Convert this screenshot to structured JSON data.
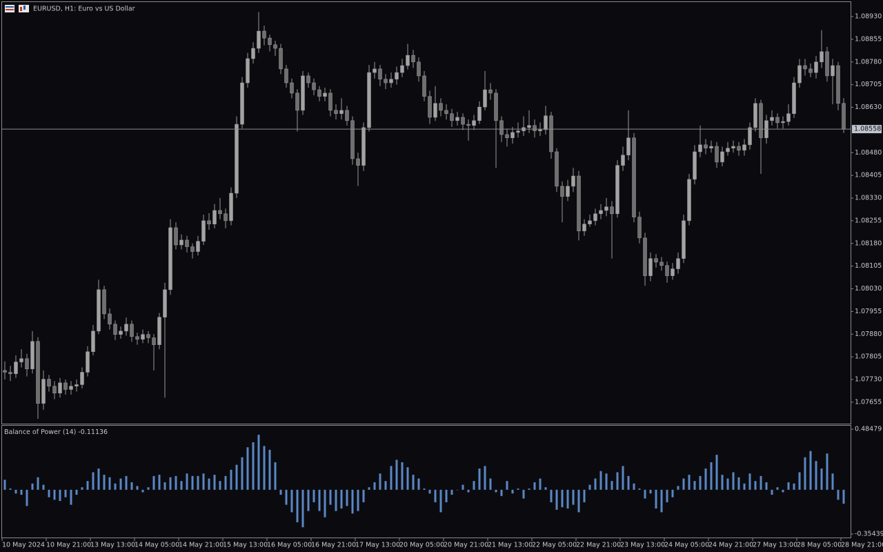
{
  "chart_data": {
    "type": "candlestick",
    "title": "EURUSD, H1:  Euro vs US Dollar",
    "up_color": "#a3a3a3",
    "down_color": "#6f6f6f",
    "ylim": [
      1.07584,
      1.08978
    ],
    "yticks": [
      {
        "value": 1.0893,
        "label": "1.08930"
      },
      1.08855,
      {
        "value": 1.0878,
        "label": "1.08780"
      },
      1.08705,
      {
        "value": 1.0863,
        "label": "1.08630"
      },
      {
        "value": 1.0848,
        "label": "1.08480"
      },
      1.08405,
      {
        "value": 1.0833,
        "label": "1.08330"
      },
      1.08255,
      {
        "value": 1.0818,
        "label": "1.08180"
      },
      1.08105,
      {
        "value": 1.0803,
        "label": "1.08030"
      },
      1.07955,
      {
        "value": 1.0788,
        "label": "1.07880"
      },
      1.07805,
      {
        "value": 1.0773,
        "label": "1.07730"
      },
      1.07655
    ],
    "x_labels": [
      "10 May 2024",
      "10 May 21:00",
      "13 May 13:00",
      "14 May 05:00",
      "14 May 21:00",
      "15 May 13:00",
      "16 May 05:00",
      "16 May 21:00",
      "17 May 13:00",
      "20 May 05:00",
      "20 May 21:00",
      "21 May 13:00",
      "22 May 05:00",
      "22 May 21:00",
      "23 May 13:00",
      "24 May 05:00",
      "24 May 21:00",
      "27 May 13:00",
      "28 May 05:00",
      "28 May 21:00"
    ],
    "open": [
      1.0776,
      1.07754,
      1.07749,
      1.07788,
      1.07799,
      1.07765,
      1.07856,
      1.07651,
      1.07731,
      1.07708,
      1.07685,
      1.07719,
      1.07697,
      1.07708,
      1.07713,
      1.07754,
      1.07822,
      1.0789,
      1.08027,
      1.07947,
      1.07913,
      1.07879,
      1.0789,
      1.07913,
      1.07872,
      1.07863,
      1.07879,
      1.07868,
      1.07845,
      1.07936,
      1.08027,
      1.08232,
      1.08175,
      1.08191,
      1.08169,
      1.08153,
      1.08187,
      1.08255,
      1.08244,
      1.08289,
      1.08278,
      1.08255,
      1.08346,
      1.08574,
      1.08711,
      1.08791,
      1.08825,
      1.08882,
      1.08859,
      1.08837,
      1.08825,
      1.08757,
      1.08711,
      1.08677,
      1.0862,
      1.08734,
      1.08711,
      1.08688,
      1.08666,
      1.08677,
      1.0862,
      1.08609,
      1.0862,
      1.08586,
      1.0846,
      1.08438,
      1.08563,
      1.08745,
      1.08757,
      1.08723,
      1.08711,
      1.08723,
      1.08745,
      1.08768,
      1.08802,
      1.0878,
      1.08734,
      1.08666,
      1.08597,
      1.08643,
      1.0862,
      1.08609,
      1.08586,
      1.08597,
      1.08574,
      1.0857,
      1.08586,
      1.08631,
      1.08688,
      1.08677,
      1.08586,
      1.0854,
      1.08529,
      1.08547,
      1.08552,
      1.08563,
      1.0857,
      1.08552,
      1.08556,
      1.08602,
      1.08483,
      1.08369,
      1.08335,
      1.08369,
      1.08403,
      1.08221,
      1.08244,
      1.08255,
      1.08278,
      1.08289,
      1.08301,
      1.08278,
      1.08438,
      1.08472,
      1.08529,
      1.08267,
      1.08198,
      1.08073,
      1.0813,
      1.08118,
      1.08107,
      1.08073,
      1.08096,
      1.0813,
      1.08255,
      1.08392,
      1.08483,
      1.08506,
      1.08495,
      1.08501,
      1.08449,
      1.08483,
      1.08495,
      1.08501,
      1.08488,
      1.08506,
      1.08563,
      1.08643,
      1.08529,
      1.08586,
      1.08597,
      1.08579,
      1.08583,
      1.08609,
      1.08711,
      1.08768,
      1.08757,
      1.08745,
      1.0878,
      1.08814,
      1.08734,
      1.08768,
      1.08643
    ],
    "high": [
      1.0779,
      1.07775,
      1.0781,
      1.0783,
      1.07815,
      1.0789,
      1.0787,
      1.0776,
      1.07745,
      1.07725,
      1.07735,
      1.0773,
      1.07725,
      1.0773,
      1.0777,
      1.0784,
      1.0791,
      1.0806,
      1.0804,
      1.07965,
      1.07925,
      1.07905,
      1.07935,
      1.07925,
      1.07885,
      1.07895,
      1.0789,
      1.0788,
      1.0795,
      1.0805,
      1.0826,
      1.0825,
      1.0821,
      1.08205,
      1.0818,
      1.08205,
      1.08275,
      1.0828,
      1.0831,
      1.0833,
      1.08295,
      1.08365,
      1.086,
      1.0873,
      1.0881,
      1.08845,
      1.08945,
      1.089,
      1.0887,
      1.0885,
      1.0884,
      1.0877,
      1.08725,
      1.0869,
      1.0875,
      1.08745,
      1.08725,
      1.087,
      1.08695,
      1.0869,
      1.0864,
      1.0866,
      1.08635,
      1.086,
      1.0848,
      1.0858,
      1.0877,
      1.0878,
      1.0877,
      1.0874,
      1.08745,
      1.08765,
      1.0879,
      1.0884,
      1.0882,
      1.08795,
      1.0875,
      1.08685,
      1.087,
      1.0866,
      1.0864,
      1.08625,
      1.08615,
      1.0861,
      1.0859,
      1.08605,
      1.0865,
      1.0875,
      1.0871,
      1.0869,
      1.086,
      1.0856,
      1.08565,
      1.0858,
      1.086,
      1.0862,
      1.0859,
      1.0858,
      1.08635,
      1.08615,
      1.08495,
      1.08385,
      1.0839,
      1.0843,
      1.0842,
      1.0826,
      1.08275,
      1.08295,
      1.0831,
      1.0833,
      1.0832,
      1.08455,
      1.085,
      1.0862,
      1.08545,
      1.08285,
      1.08215,
      1.0815,
      1.08145,
      1.08135,
      1.0812,
      1.08115,
      1.0815,
      1.08275,
      1.0841,
      1.08505,
      1.0857,
      1.08525,
      1.0852,
      1.08515,
      1.085,
      1.08515,
      1.0852,
      1.08515,
      1.08525,
      1.0858,
      1.0866,
      1.08655,
      1.08605,
      1.0862,
      1.0861,
      1.086,
      1.0864,
      1.0873,
      1.0879,
      1.0879,
      1.08775,
      1.088,
      1.08885,
      1.0883,
      1.0879,
      1.0878,
      1.0866
    ],
    "low": [
      1.0773,
      1.07725,
      1.07735,
      1.0777,
      1.0774,
      1.0775,
      1.076,
      1.0763,
      1.0769,
      1.07665,
      1.0767,
      1.0768,
      1.0768,
      1.0769,
      1.077,
      1.0774,
      1.0781,
      1.0788,
      1.0793,
      1.07895,
      1.0786,
      1.07865,
      1.07875,
      1.07855,
      1.07845,
      1.0785,
      1.0785,
      1.0776,
      1.0783,
      1.0767,
      1.0801,
      1.0816,
      1.0816,
      1.0815,
      1.0813,
      1.0814,
      1.08175,
      1.08225,
      1.0823,
      1.0826,
      1.0823,
      1.0824,
      1.0833,
      1.0856,
      1.08695,
      1.08775,
      1.0881,
      1.08835,
      1.08815,
      1.088,
      1.0874,
      1.08695,
      1.0866,
      1.0855,
      1.08605,
      1.08695,
      1.0867,
      1.0865,
      1.0865,
      1.086,
      1.0859,
      1.0859,
      1.0857,
      1.0844,
      1.0837,
      1.0842,
      1.0855,
      1.08725,
      1.087,
      1.0869,
      1.08695,
      1.08705,
      1.0873,
      1.08755,
      1.0876,
      1.08715,
      1.0865,
      1.08575,
      1.08585,
      1.086,
      1.0859,
      1.08565,
      1.0857,
      1.08555,
      1.0852,
      1.08555,
      1.08575,
      1.0862,
      1.08655,
      1.0843,
      1.08515,
      1.085,
      1.0851,
      1.0853,
      1.08535,
      1.08545,
      1.0853,
      1.08535,
      1.0854,
      1.0846,
      1.0835,
      1.0825,
      1.0832,
      1.0835,
      1.0819,
      1.08205,
      1.08235,
      1.0824,
      1.0826,
      1.0827,
      1.0813,
      1.08265,
      1.0842,
      1.08455,
      1.0825,
      1.0818,
      1.0804,
      1.08055,
      1.081,
      1.0809,
      1.0805,
      1.0806,
      1.0808,
      1.08115,
      1.0824,
      1.08375,
      1.08465,
      1.08475,
      1.0848,
      1.0843,
      1.08435,
      1.0847,
      1.0848,
      1.0847,
      1.0847,
      1.0849,
      1.0855,
      1.0841,
      1.0851,
      1.0857,
      1.0856,
      1.0856,
      1.0857,
      1.08595,
      1.08695,
      1.08735,
      1.0873,
      1.08725,
      1.0876,
      1.08715,
      1.0864,
      1.0862,
      1.08545
    ],
    "close": [
      1.07754,
      1.07749,
      1.07788,
      1.07799,
      1.07765,
      1.07856,
      1.07651,
      1.07731,
      1.07708,
      1.07685,
      1.07719,
      1.07697,
      1.07708,
      1.07713,
      1.07754,
      1.07822,
      1.0789,
      1.08027,
      1.07947,
      1.07913,
      1.07879,
      1.0789,
      1.07913,
      1.07872,
      1.07863,
      1.07879,
      1.07868,
      1.07845,
      1.07936,
      1.08027,
      1.08232,
      1.08175,
      1.08191,
      1.08169,
      1.08153,
      1.08187,
      1.08255,
      1.08244,
      1.08289,
      1.08278,
      1.08255,
      1.08346,
      1.08574,
      1.08711,
      1.08791,
      1.08825,
      1.08882,
      1.08859,
      1.08837,
      1.08825,
      1.08757,
      1.08711,
      1.08677,
      1.0862,
      1.08734,
      1.08711,
      1.08688,
      1.08666,
      1.08677,
      1.0862,
      1.08609,
      1.0862,
      1.08586,
      1.0846,
      1.08438,
      1.08563,
      1.08745,
      1.08757,
      1.08723,
      1.08711,
      1.08723,
      1.08745,
      1.08768,
      1.08802,
      1.0878,
      1.08734,
      1.08666,
      1.08597,
      1.08643,
      1.0862,
      1.08609,
      1.08586,
      1.08597,
      1.08574,
      1.0857,
      1.08586,
      1.08631,
      1.08688,
      1.08677,
      1.08586,
      1.0854,
      1.08529,
      1.08547,
      1.08552,
      1.08563,
      1.0857,
      1.08552,
      1.08556,
      1.08602,
      1.08483,
      1.08369,
      1.08335,
      1.08369,
      1.08403,
      1.08221,
      1.08244,
      1.08255,
      1.08278,
      1.08289,
      1.08301,
      1.08278,
      1.08438,
      1.08472,
      1.08529,
      1.08267,
      1.08198,
      1.08073,
      1.0813,
      1.08118,
      1.08107,
      1.08073,
      1.08096,
      1.0813,
      1.08255,
      1.08392,
      1.08483,
      1.08506,
      1.08495,
      1.08501,
      1.08449,
      1.08483,
      1.08495,
      1.08501,
      1.08488,
      1.08506,
      1.08563,
      1.08643,
      1.08529,
      1.08586,
      1.08597,
      1.08579,
      1.08583,
      1.08609,
      1.08711,
      1.08768,
      1.08757,
      1.08745,
      1.0878,
      1.08814,
      1.08734,
      1.08768,
      1.08643,
      1.08558
    ],
    "indicator": {
      "type": "bar",
      "name": "Balance of Power (14)",
      "color": "#5b87c5",
      "ylim": [
        -0.35439,
        0.48479
      ],
      "yticks": [
        0.48479,
        -0.35439
      ],
      "values": [
        0.08,
        0.01,
        -0.03,
        -0.04,
        -0.13,
        0.05,
        0.1,
        0.04,
        -0.06,
        -0.08,
        -0.09,
        -0.06,
        -0.12,
        -0.04,
        0.02,
        0.07,
        0.14,
        0.17,
        0.12,
        0.1,
        0.05,
        0.09,
        0.11,
        0.06,
        0.03,
        -0.02,
        0.02,
        0.11,
        0.12,
        0.06,
        0.1,
        0.11,
        0.07,
        0.13,
        0.11,
        0.11,
        0.13,
        0.09,
        0.12,
        0.07,
        0.11,
        0.16,
        0.2,
        0.26,
        0.34,
        0.38,
        0.44,
        0.35,
        0.32,
        0.22,
        -0.04,
        -0.12,
        -0.18,
        -0.26,
        -0.3,
        -0.17,
        -0.1,
        -0.17,
        -0.22,
        -0.12,
        -0.17,
        -0.15,
        -0.13,
        -0.19,
        -0.17,
        -0.1,
        0.02,
        0.06,
        0.13,
        0.07,
        0.19,
        0.24,
        0.22,
        0.18,
        0.12,
        0.09,
        0.01,
        -0.03,
        -0.1,
        -0.18,
        -0.1,
        -0.04,
        0.0,
        0.04,
        -0.02,
        0.07,
        0.17,
        0.19,
        0.09,
        -0.02,
        -0.05,
        0.07,
        -0.03,
        0.01,
        -0.07,
        0.01,
        0.06,
        0.09,
        0.02,
        -0.1,
        -0.16,
        -0.14,
        -0.15,
        -0.12,
        -0.18,
        -0.1,
        0.04,
        0.09,
        0.15,
        0.13,
        0.07,
        0.14,
        0.19,
        0.11,
        0.05,
        0.01,
        -0.07,
        -0.03,
        -0.15,
        -0.18,
        -0.1,
        -0.06,
        0.03,
        0.09,
        0.12,
        0.07,
        0.11,
        0.17,
        0.22,
        0.28,
        0.12,
        0.09,
        0.14,
        0.1,
        0.05,
        0.13,
        0.07,
        0.11,
        0.06,
        -0.04,
        0.02,
        -0.02,
        0.06,
        0.05,
        0.14,
        0.26,
        0.31,
        0.23,
        0.17,
        0.29,
        0.13,
        -0.08,
        -0.11136
      ]
    }
  }
}
